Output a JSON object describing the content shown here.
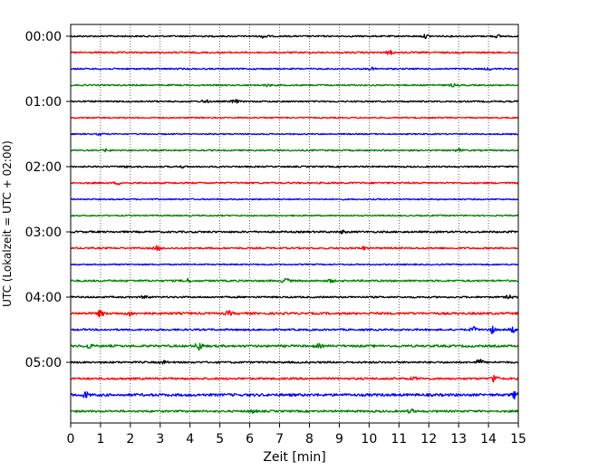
{
  "chart_data": {
    "type": "line",
    "title": "",
    "xlabel": "Zeit  [min]",
    "ylabel": "UTC (Lokalzeit = UTC + 02:00)",
    "xlim": [
      0,
      15
    ],
    "x_ticks": [
      0,
      1,
      2,
      3,
      4,
      5,
      6,
      7,
      8,
      9,
      10,
      11,
      12,
      13,
      14,
      15
    ],
    "x_tick_labels": [
      "0",
      "1",
      "2",
      "3",
      "4",
      "5",
      "6",
      "7",
      "8",
      "9",
      "10",
      "11",
      "12",
      "13",
      "14",
      "15"
    ],
    "y_tick_labels": [
      "00:00",
      "01:00",
      "02:00",
      "03:00",
      "04:00",
      "05:00"
    ],
    "y_tick_rows": [
      0,
      4,
      8,
      12,
      16,
      20
    ],
    "row_interval_min": 15,
    "vertical_grid": true,
    "grid_style": "dotted",
    "color_cycle": [
      "#000000",
      "#ff0000",
      "#0000ff",
      "#008000"
    ],
    "rows": [
      {
        "start": "00:00",
        "amplitude": 0.16,
        "events": [
          {
            "t": 6.5,
            "a": 0.45
          },
          {
            "t": 11.9,
            "a": 0.35
          },
          {
            "t": 14.3,
            "a": 0.25
          }
        ]
      },
      {
        "start": "00:15",
        "amplitude": 0.18,
        "events": [
          {
            "t": 10.7,
            "a": 0.4
          }
        ]
      },
      {
        "start": "00:30",
        "amplitude": 0.16,
        "events": [
          {
            "t": 10.1,
            "a": 0.2
          },
          {
            "t": 14.0,
            "a": 0.2
          }
        ]
      },
      {
        "start": "00:45",
        "amplitude": 0.16,
        "events": [
          {
            "t": 6.6,
            "a": 0.25
          },
          {
            "t": 12.8,
            "a": 0.25
          }
        ]
      },
      {
        "start": "01:00",
        "amplitude": 0.16,
        "events": [
          {
            "t": 4.5,
            "a": 0.35
          },
          {
            "t": 5.5,
            "a": 0.4
          }
        ]
      },
      {
        "start": "01:15",
        "amplitude": 0.14,
        "events": []
      },
      {
        "start": "01:30",
        "amplitude": 0.14,
        "events": [
          {
            "t": 1.0,
            "a": 0.2
          }
        ]
      },
      {
        "start": "01:45",
        "amplitude": 0.16,
        "events": [
          {
            "t": 1.2,
            "a": 0.25
          },
          {
            "t": 13.0,
            "a": 0.3
          }
        ]
      },
      {
        "start": "02:00",
        "amplitude": 0.16,
        "events": [
          {
            "t": 1.9,
            "a": 0.2
          },
          {
            "t": 3.7,
            "a": 0.2
          }
        ]
      },
      {
        "start": "02:15",
        "amplitude": 0.18,
        "events": [
          {
            "t": 1.6,
            "a": 0.25
          }
        ]
      },
      {
        "start": "02:30",
        "amplitude": 0.14,
        "events": []
      },
      {
        "start": "02:45",
        "amplitude": 0.14,
        "events": []
      },
      {
        "start": "03:00",
        "amplitude": 0.2,
        "events": [
          {
            "t": 9.1,
            "a": 0.25
          }
        ]
      },
      {
        "start": "03:15",
        "amplitude": 0.18,
        "events": [
          {
            "t": 2.9,
            "a": 0.45
          },
          {
            "t": 9.8,
            "a": 0.3
          }
        ]
      },
      {
        "start": "03:30",
        "amplitude": 0.14,
        "events": []
      },
      {
        "start": "03:45",
        "amplitude": 0.2,
        "events": [
          {
            "t": 3.9,
            "a": 0.35
          },
          {
            "t": 7.2,
            "a": 0.55
          },
          {
            "t": 8.7,
            "a": 0.3
          }
        ]
      },
      {
        "start": "04:00",
        "amplitude": 0.18,
        "events": [
          {
            "t": 2.5,
            "a": 0.3
          },
          {
            "t": 14.7,
            "a": 0.35
          }
        ]
      },
      {
        "start": "04:15",
        "amplitude": 0.24,
        "events": [
          {
            "t": 1.0,
            "a": 0.6
          },
          {
            "t": 2.0,
            "a": 0.5
          },
          {
            "t": 5.3,
            "a": 0.4
          }
        ]
      },
      {
        "start": "04:30",
        "amplitude": 0.2,
        "events": [
          {
            "t": 13.5,
            "a": 0.5
          },
          {
            "t": 14.1,
            "a": 0.75
          },
          {
            "t": 14.8,
            "a": 0.55
          }
        ]
      },
      {
        "start": "04:45",
        "amplitude": 0.24,
        "events": [
          {
            "t": 0.6,
            "a": 0.45
          },
          {
            "t": 4.3,
            "a": 0.9
          },
          {
            "t": 8.3,
            "a": 0.35
          }
        ]
      },
      {
        "start": "05:00",
        "amplitude": 0.2,
        "events": [
          {
            "t": 3.1,
            "a": 0.3
          },
          {
            "t": 13.7,
            "a": 0.6
          }
        ]
      },
      {
        "start": "05:15",
        "amplitude": 0.22,
        "events": [
          {
            "t": 14.2,
            "a": 0.85
          },
          {
            "t": 11.5,
            "a": 0.3
          }
        ]
      },
      {
        "start": "05:30",
        "amplitude": 0.28,
        "events": [
          {
            "t": 0.5,
            "a": 0.55
          },
          {
            "t": 14.9,
            "a": 0.7
          }
        ]
      },
      {
        "start": "05:45",
        "amplitude": 0.22,
        "events": [
          {
            "t": 11.4,
            "a": 0.4
          },
          {
            "t": 6.1,
            "a": 0.3
          }
        ]
      }
    ]
  }
}
